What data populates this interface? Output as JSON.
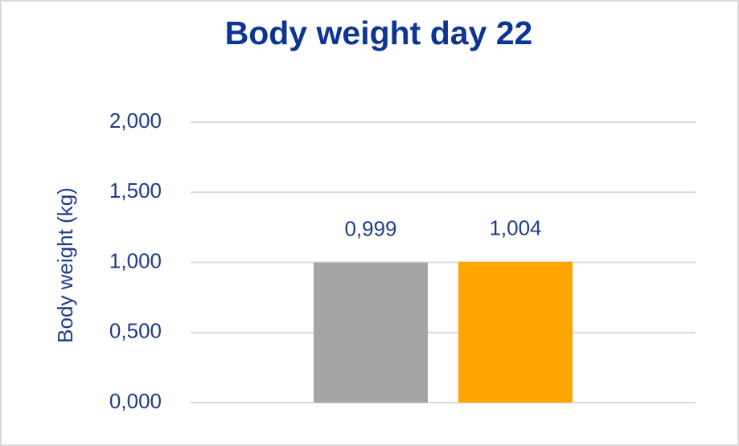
{
  "chart_data": {
    "type": "bar",
    "title": "Body weight day 22",
    "y_label": "Body weight  (kg)",
    "categories": [
      null
    ],
    "series": [
      {
        "color": "#a5a5a5",
        "values": [
          0.999
        ],
        "value_labels": [
          "0,999"
        ]
      },
      {
        "color": "#ffa500",
        "values": [
          1.004
        ],
        "value_labels": [
          "1,004"
        ]
      }
    ],
    "ylim": [
      0,
      2
    ],
    "yticks": [
      {
        "value": 0,
        "label": "0,000"
      },
      {
        "value": 0.5,
        "label": "0,500"
      },
      {
        "value": 1,
        "label": "1,000"
      },
      {
        "value": 1.5,
        "label": "1,500"
      },
      {
        "value": 2,
        "label": "2,000"
      }
    ],
    "grid": true
  }
}
